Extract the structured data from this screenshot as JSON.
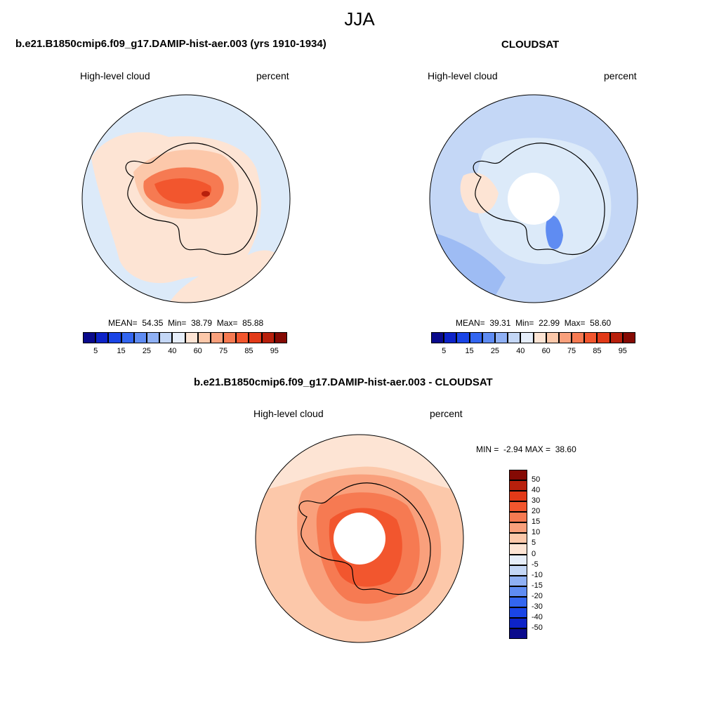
{
  "figure": {
    "title": "JJA"
  },
  "panels": [
    {
      "title": "b.e21.B1850cmip6.f09_g17.DAMIP-hist-aer.003 (yrs 1910-1934)",
      "left_label": "High-level cloud",
      "right_label": "percent",
      "stats": {
        "mean": "54.35",
        "min": "38.79",
        "max": "85.88"
      }
    },
    {
      "title": "CLOUDSAT",
      "left_label": "High-level cloud",
      "right_label": "percent",
      "stats": {
        "mean": "39.31",
        "min": "22.99",
        "max": "58.60"
      }
    },
    {
      "title": "b.e21.B1850cmip6.f09_g17.DAMIP-hist-aer.003 - CLOUDSAT",
      "left_label": "High-level cloud",
      "right_label": "percent",
      "stats": {
        "min": "-2.94",
        "max": "38.60"
      }
    }
  ],
  "stat_labels": {
    "mean": "MEAN=",
    "min": "Min=",
    "max": "Max=",
    "min_upper": "MIN =",
    "max_upper": "MAX ="
  },
  "colorbar_horizontal": {
    "colors": [
      "#0a0a8c",
      "#0d23c8",
      "#1a45e6",
      "#3366f0",
      "#5f8cf2",
      "#8fb0f4",
      "#c4d7f6",
      "#e6eefa",
      "#fde4d4",
      "#fcc8aa",
      "#f9a07c",
      "#f67a52",
      "#f2562e",
      "#e23a18",
      "#b8200c",
      "#850a04"
    ],
    "ticks": [
      "5",
      "15",
      "25",
      "40",
      "60",
      "75",
      "85",
      "95"
    ]
  },
  "colorbar_vertical": {
    "colors": [
      "#850a04",
      "#b8200c",
      "#e23a18",
      "#f2562e",
      "#f67a52",
      "#f9a07c",
      "#fcc8aa",
      "#fde4d4",
      "#e6eefa",
      "#c4d7f6",
      "#8fb0f4",
      "#5f8cf2",
      "#3366f0",
      "#1a45e6",
      "#0d23c8",
      "#0a0a8c"
    ],
    "ticks": [
      "50",
      "40",
      "30",
      "20",
      "15",
      "10",
      "5",
      "0",
      "-5",
      "-10",
      "-15",
      "-20",
      "-30",
      "-40",
      "-50"
    ]
  }
}
